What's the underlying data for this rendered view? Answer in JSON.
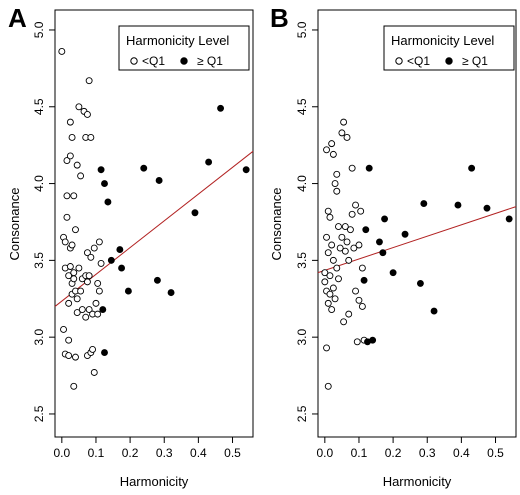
{
  "chart_data": [
    {
      "type": "scatter",
      "panel_label": "A",
      "xlabel": "Harmonicity",
      "ylabel": "Consonance",
      "xlim": [
        -0.02,
        0.56
      ],
      "ylim": [
        2.35,
        5.13
      ],
      "xticks": [
        0.0,
        0.1,
        0.2,
        0.3,
        0.4,
        0.5
      ],
      "xtick_labels": [
        "0.0",
        "0.1",
        "0.2",
        "0.3",
        "0.4",
        "0.5"
      ],
      "yticks": [
        2.5,
        3.0,
        3.5,
        4.0,
        4.5,
        5.0
      ],
      "ytick_labels": [
        "2.5",
        "3.0",
        "3.5",
        "4.0",
        "4.5",
        "5.0"
      ],
      "legend": {
        "title": "Harmonicity Level",
        "position": "top-left",
        "entries": [
          {
            "label": "<Q1",
            "marker": "open-circle"
          },
          {
            "label": "≥ Q1",
            "marker": "filled-circle"
          }
        ]
      },
      "regression_line": {
        "x": [
          -0.02,
          0.56
        ],
        "y": [
          3.2,
          4.21
        ],
        "color": "#b22222"
      },
      "series": [
        {
          "name": "<Q1",
          "marker": "open-circle",
          "points": [
            [
              0.0,
              4.86
            ],
            [
              0.005,
              3.65
            ],
            [
              0.005,
              3.05
            ],
            [
              0.01,
              3.62
            ],
            [
              0.01,
              3.45
            ],
            [
              0.01,
              2.89
            ],
            [
              0.015,
              4.15
            ],
            [
              0.015,
              3.92
            ],
            [
              0.015,
              3.78
            ],
            [
              0.02,
              3.4
            ],
            [
              0.02,
              3.22
            ],
            [
              0.02,
              2.98
            ],
            [
              0.02,
              2.88
            ],
            [
              0.025,
              4.4
            ],
            [
              0.025,
              4.18
            ],
            [
              0.025,
              3.58
            ],
            [
              0.025,
              3.46
            ],
            [
              0.03,
              4.3
            ],
            [
              0.03,
              3.6
            ],
            [
              0.03,
              3.35
            ],
            [
              0.03,
              3.28
            ],
            [
              0.035,
              3.92
            ],
            [
              0.035,
              3.42
            ],
            [
              0.035,
              3.38
            ],
            [
              0.035,
              2.68
            ],
            [
              0.04,
              3.7
            ],
            [
              0.04,
              3.3
            ],
            [
              0.04,
              2.87
            ],
            [
              0.045,
              4.12
            ],
            [
              0.045,
              3.25
            ],
            [
              0.045,
              3.16
            ],
            [
              0.05,
              4.5
            ],
            [
              0.05,
              3.45
            ],
            [
              0.055,
              4.05
            ],
            [
              0.055,
              3.3
            ],
            [
              0.06,
              3.38
            ],
            [
              0.06,
              3.18
            ],
            [
              0.065,
              4.47
            ],
            [
              0.07,
              4.3
            ],
            [
              0.07,
              3.4
            ],
            [
              0.07,
              3.13
            ],
            [
              0.075,
              4.45
            ],
            [
              0.075,
              3.55
            ],
            [
              0.075,
              3.36
            ],
            [
              0.075,
              2.88
            ],
            [
              0.08,
              4.67
            ],
            [
              0.08,
              3.4
            ],
            [
              0.08,
              3.18
            ],
            [
              0.085,
              4.3
            ],
            [
              0.085,
              3.52
            ],
            [
              0.085,
              2.9
            ],
            [
              0.09,
              3.15
            ],
            [
              0.09,
              2.92
            ],
            [
              0.095,
              3.58
            ],
            [
              0.095,
              2.77
            ],
            [
              0.1,
              3.22
            ],
            [
              0.105,
              3.35
            ],
            [
              0.105,
              3.15
            ],
            [
              0.11,
              3.62
            ],
            [
              0.11,
              3.3
            ],
            [
              0.115,
              3.48
            ]
          ]
        },
        {
          "name": "≥ Q1",
          "marker": "filled-circle",
          "points": [
            [
              0.115,
              4.09
            ],
            [
              0.12,
              3.18
            ],
            [
              0.125,
              2.9
            ],
            [
              0.125,
              4.0
            ],
            [
              0.135,
              3.88
            ],
            [
              0.145,
              3.5
            ],
            [
              0.17,
              3.57
            ],
            [
              0.175,
              3.45
            ],
            [
              0.195,
              3.3
            ],
            [
              0.24,
              4.1
            ],
            [
              0.28,
              3.37
            ],
            [
              0.285,
              4.02
            ],
            [
              0.32,
              3.29
            ],
            [
              0.39,
              3.81
            ],
            [
              0.43,
              4.14
            ],
            [
              0.465,
              4.49
            ],
            [
              0.54,
              4.09
            ]
          ]
        }
      ]
    },
    {
      "type": "scatter",
      "panel_label": "B",
      "xlabel": "Harmonicity",
      "ylabel": "Consonance",
      "xlim": [
        -0.02,
        0.56
      ],
      "ylim": [
        2.35,
        5.13
      ],
      "xticks": [
        0.0,
        0.1,
        0.2,
        0.3,
        0.4,
        0.5
      ],
      "xtick_labels": [
        "0.0",
        "0.1",
        "0.2",
        "0.3",
        "0.4",
        "0.5"
      ],
      "yticks": [
        2.5,
        3.0,
        3.5,
        4.0,
        4.5,
        5.0
      ],
      "ytick_labels": [
        "2.5",
        "3.0",
        "3.5",
        "4.0",
        "4.5",
        "5.0"
      ],
      "legend": {
        "title": "Harmonicity Level",
        "position": "top-right",
        "entries": [
          {
            "label": "<Q1",
            "marker": "open-circle"
          },
          {
            "label": "≥ Q1",
            "marker": "filled-circle"
          }
        ]
      },
      "regression_line": {
        "x": [
          -0.02,
          0.56
        ],
        "y": [
          3.42,
          3.85
        ],
        "color": "#b22222"
      },
      "series": [
        {
          "name": "<Q1",
          "marker": "open-circle",
          "points": [
            [
              0.0,
              3.42
            ],
            [
              0.0,
              3.36
            ],
            [
              0.005,
              4.22
            ],
            [
              0.005,
              3.65
            ],
            [
              0.005,
              3.3
            ],
            [
              0.005,
              2.93
            ],
            [
              0.01,
              3.82
            ],
            [
              0.01,
              3.55
            ],
            [
              0.01,
              3.22
            ],
            [
              0.01,
              2.68
            ],
            [
              0.015,
              3.78
            ],
            [
              0.015,
              3.4
            ],
            [
              0.015,
              3.28
            ],
            [
              0.02,
              4.26
            ],
            [
              0.02,
              3.6
            ],
            [
              0.02,
              3.18
            ],
            [
              0.025,
              4.19
            ],
            [
              0.025,
              3.5
            ],
            [
              0.025,
              3.32
            ],
            [
              0.03,
              4.0
            ],
            [
              0.03,
              3.25
            ],
            [
              0.035,
              4.06
            ],
            [
              0.035,
              3.95
            ],
            [
              0.035,
              3.45
            ],
            [
              0.04,
              3.72
            ],
            [
              0.04,
              3.38
            ],
            [
              0.045,
              3.58
            ],
            [
              0.05,
              4.33
            ],
            [
              0.05,
              3.65
            ],
            [
              0.055,
              4.4
            ],
            [
              0.055,
              3.1
            ],
            [
              0.06,
              3.72
            ],
            [
              0.06,
              3.56
            ],
            [
              0.065,
              4.3
            ],
            [
              0.065,
              3.62
            ],
            [
              0.07,
              3.5
            ],
            [
              0.07,
              3.15
            ],
            [
              0.075,
              3.7
            ],
            [
              0.08,
              4.1
            ],
            [
              0.08,
              3.8
            ],
            [
              0.085,
              3.58
            ],
            [
              0.09,
              3.86
            ],
            [
              0.09,
              3.3
            ],
            [
              0.095,
              2.97
            ],
            [
              0.1,
              3.6
            ],
            [
              0.1,
              3.24
            ],
            [
              0.105,
              3.82
            ],
            [
              0.11,
              3.45
            ],
            [
              0.11,
              3.2
            ],
            [
              0.115,
              2.98
            ]
          ]
        },
        {
          "name": "≥ Q1",
          "marker": "filled-circle",
          "points": [
            [
              0.115,
              3.37
            ],
            [
              0.12,
              3.7
            ],
            [
              0.125,
              2.97
            ],
            [
              0.13,
              4.1
            ],
            [
              0.14,
              2.98
            ],
            [
              0.16,
              3.62
            ],
            [
              0.17,
              3.55
            ],
            [
              0.175,
              3.77
            ],
            [
              0.2,
              3.42
            ],
            [
              0.235,
              3.67
            ],
            [
              0.28,
              3.35
            ],
            [
              0.29,
              3.87
            ],
            [
              0.32,
              3.17
            ],
            [
              0.39,
              3.86
            ],
            [
              0.43,
              4.1
            ],
            [
              0.475,
              3.84
            ],
            [
              0.54,
              3.77
            ]
          ]
        }
      ]
    }
  ]
}
